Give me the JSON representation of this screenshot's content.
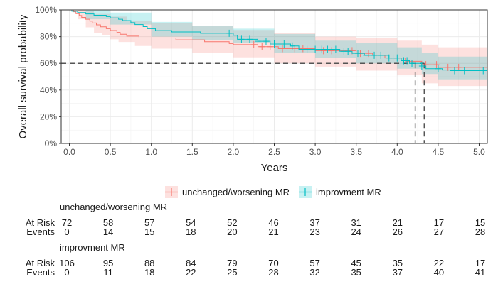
{
  "chart_data": {
    "type": "line",
    "subtype": "kaplan-meier survival curve",
    "xlabel": "Years",
    "ylabel": "Overall survival probability",
    "xlim": [
      -0.1,
      5.1
    ],
    "ylim": [
      0,
      1
    ],
    "x_ticks": [
      0.0,
      0.5,
      1.0,
      1.5,
      2.0,
      2.5,
      3.0,
      3.5,
      4.0,
      4.5,
      5.0
    ],
    "x_tick_labels": [
      "0.0",
      "0.5",
      "1.0",
      "1.5",
      "2.0",
      "2.5",
      "3.0",
      "3.5",
      "4.0",
      "4.5",
      "5.0"
    ],
    "y_ticks": [
      0,
      0.2,
      0.4,
      0.6,
      0.8,
      1.0
    ],
    "y_tick_labels": [
      "0%",
      "20%",
      "40%",
      "60%",
      "80%",
      "100%"
    ],
    "grid": true,
    "legend_position": "bottom",
    "median_survival": {
      "y": 0.6,
      "x": [
        4.22,
        4.33
      ]
    },
    "series": [
      {
        "name": "unchanged/worsening MR",
        "color": "#F8766D",
        "fill_color": "#F8766D",
        "steps": [
          [
            0.0,
            1.0
          ],
          [
            0.05,
            0.986
          ],
          [
            0.08,
            0.972
          ],
          [
            0.12,
            0.958
          ],
          [
            0.15,
            0.944
          ],
          [
            0.2,
            0.93
          ],
          [
            0.25,
            0.916
          ],
          [
            0.28,
            0.902
          ],
          [
            0.33,
            0.888
          ],
          [
            0.38,
            0.874
          ],
          [
            0.45,
            0.86
          ],
          [
            0.5,
            0.846
          ],
          [
            0.58,
            0.832
          ],
          [
            0.62,
            0.818
          ],
          [
            0.7,
            0.804
          ],
          [
            0.85,
            0.79
          ],
          [
            1.3,
            0.776
          ],
          [
            1.65,
            0.762
          ],
          [
            1.95,
            0.748
          ],
          [
            2.0,
            0.74
          ],
          [
            2.3,
            0.725
          ],
          [
            2.55,
            0.71
          ],
          [
            3.0,
            0.695
          ],
          [
            3.5,
            0.675
          ],
          [
            3.7,
            0.66
          ],
          [
            3.85,
            0.64
          ],
          [
            4.1,
            0.615
          ],
          [
            4.3,
            0.59
          ],
          [
            4.5,
            0.57
          ],
          [
            5.1,
            0.57
          ]
        ],
        "lower": [
          [
            0.0,
            1.0
          ],
          [
            0.1,
            0.93
          ],
          [
            0.2,
            0.87
          ],
          [
            0.3,
            0.83
          ],
          [
            0.4,
            0.81
          ],
          [
            0.5,
            0.78
          ],
          [
            0.6,
            0.76
          ],
          [
            0.8,
            0.73
          ],
          [
            1.0,
            0.71
          ],
          [
            1.5,
            0.68
          ],
          [
            2.0,
            0.645
          ],
          [
            2.5,
            0.6
          ],
          [
            3.0,
            0.575
          ],
          [
            3.5,
            0.545
          ],
          [
            4.0,
            0.51
          ],
          [
            4.3,
            0.45
          ],
          [
            4.5,
            0.43
          ],
          [
            5.1,
            0.43
          ]
        ],
        "upper": [
          [
            0.0,
            1.0
          ],
          [
            0.1,
            1.0
          ],
          [
            0.2,
            0.99
          ],
          [
            0.3,
            0.97
          ],
          [
            0.5,
            0.95
          ],
          [
            0.7,
            0.92
          ],
          [
            1.0,
            0.9
          ],
          [
            1.5,
            0.88
          ],
          [
            2.0,
            0.85
          ],
          [
            2.5,
            0.83
          ],
          [
            3.0,
            0.8
          ],
          [
            3.5,
            0.79
          ],
          [
            4.0,
            0.77
          ],
          [
            4.3,
            0.74
          ],
          [
            4.5,
            0.72
          ],
          [
            5.1,
            0.72
          ]
        ],
        "censor_x": [
          2.25,
          2.35,
          2.45,
          2.6,
          2.75,
          2.85,
          3.1,
          3.2,
          3.45,
          3.55,
          3.65,
          4.35,
          4.48,
          4.62,
          4.75
        ]
      },
      {
        "name": "improvment MR",
        "color": "#00BFC4",
        "fill_color": "#00BFC4",
        "steps": [
          [
            0.0,
            1.0
          ],
          [
            0.03,
            0.99
          ],
          [
            0.1,
            0.98
          ],
          [
            0.2,
            0.97
          ],
          [
            0.3,
            0.96
          ],
          [
            0.45,
            0.95
          ],
          [
            0.5,
            0.94
          ],
          [
            0.6,
            0.93
          ],
          [
            0.65,
            0.92
          ],
          [
            0.75,
            0.905
          ],
          [
            0.8,
            0.89
          ],
          [
            0.9,
            0.875
          ],
          [
            0.95,
            0.86
          ],
          [
            1.05,
            0.845
          ],
          [
            1.25,
            0.835
          ],
          [
            1.6,
            0.825
          ],
          [
            2.0,
            0.81
          ],
          [
            2.05,
            0.78
          ],
          [
            2.3,
            0.765
          ],
          [
            2.45,
            0.745
          ],
          [
            2.7,
            0.73
          ],
          [
            2.8,
            0.705
          ],
          [
            3.3,
            0.69
          ],
          [
            3.45,
            0.675
          ],
          [
            3.6,
            0.66
          ],
          [
            3.9,
            0.64
          ],
          [
            4.05,
            0.62
          ],
          [
            4.15,
            0.6
          ],
          [
            4.3,
            0.58
          ],
          [
            4.35,
            0.56
          ],
          [
            4.55,
            0.55
          ],
          [
            4.65,
            0.545
          ],
          [
            5.1,
            0.545
          ]
        ],
        "lower": [
          [
            0.0,
            1.0
          ],
          [
            0.2,
            0.93
          ],
          [
            0.5,
            0.89
          ],
          [
            1.0,
            0.8
          ],
          [
            1.5,
            0.775
          ],
          [
            2.0,
            0.75
          ],
          [
            2.5,
            0.68
          ],
          [
            3.0,
            0.64
          ],
          [
            3.5,
            0.6
          ],
          [
            4.0,
            0.56
          ],
          [
            4.3,
            0.52
          ],
          [
            4.5,
            0.48
          ],
          [
            5.1,
            0.45
          ]
        ],
        "upper": [
          [
            0.0,
            1.0
          ],
          [
            0.3,
            1.0
          ],
          [
            0.5,
            0.98
          ],
          [
            1.0,
            0.91
          ],
          [
            1.5,
            0.88
          ],
          [
            2.0,
            0.86
          ],
          [
            2.5,
            0.82
          ],
          [
            3.0,
            0.77
          ],
          [
            3.5,
            0.75
          ],
          [
            4.0,
            0.72
          ],
          [
            4.3,
            0.68
          ],
          [
            4.5,
            0.65
          ],
          [
            5.1,
            0.62
          ]
        ],
        "censor_x": [
          1.95,
          2.1,
          2.2,
          2.3,
          2.4,
          2.5,
          2.62,
          2.72,
          2.9,
          3.0,
          3.08,
          3.15,
          3.25,
          3.35,
          3.4,
          3.52,
          3.62,
          3.72,
          3.8,
          3.9,
          3.95,
          4.0,
          4.08,
          4.12,
          4.18,
          4.3,
          4.5,
          4.7,
          4.82,
          5.05
        ]
      }
    ]
  },
  "risk_table": {
    "row_label_at_risk": "At Risk",
    "row_label_events": "Events",
    "groups": [
      {
        "title": "unchanged/worsening MR",
        "at_risk": [
          "72",
          "58",
          "57",
          "54",
          "52",
          "46",
          "37",
          "31",
          "21",
          "17",
          "15"
        ],
        "events": [
          "0",
          "14",
          "15",
          "18",
          "20",
          "21",
          "23",
          "24",
          "26",
          "27",
          "28"
        ]
      },
      {
        "title": "improvment MR",
        "at_risk": [
          "106",
          "95",
          "88",
          "84",
          "79",
          "70",
          "57",
          "45",
          "35",
          "22",
          "17"
        ],
        "events": [
          "0",
          "11",
          "18",
          "22",
          "25",
          "28",
          "32",
          "35",
          "37",
          "40",
          "41"
        ]
      }
    ]
  }
}
